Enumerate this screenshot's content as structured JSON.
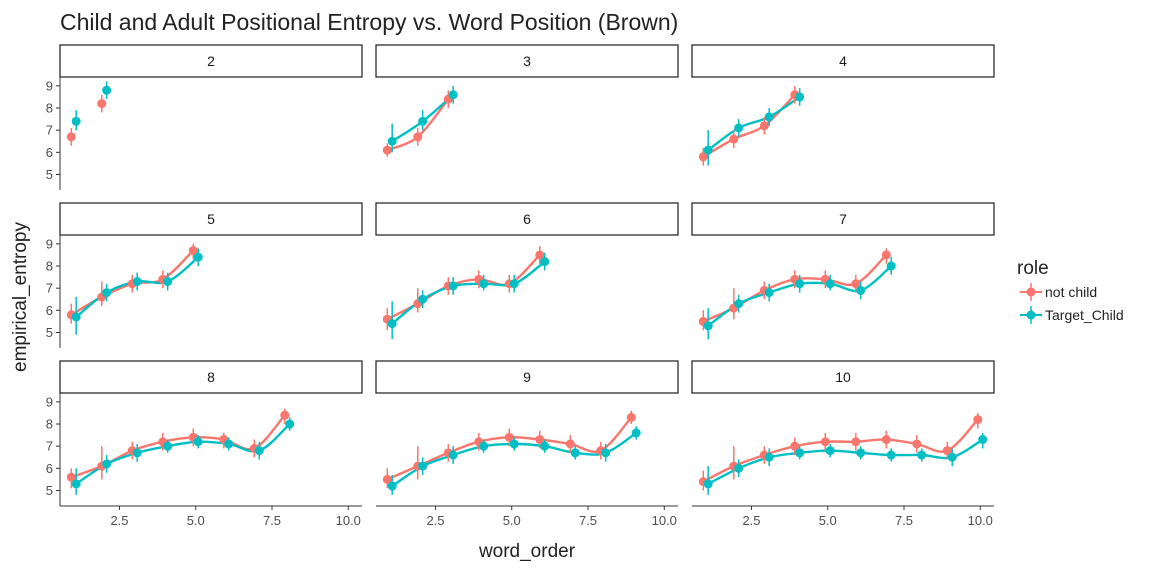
{
  "chart_data": {
    "type": "scatter",
    "title": "Child and Adult Positional Entropy vs. Word Position (Brown)",
    "xlabel": "word_order",
    "ylabel": "empirical_entropy",
    "xlim": [
      0.55,
      10.45
    ],
    "ylim": [
      4.3,
      9.4
    ],
    "x_ticks": [
      "2.5",
      "5.0",
      "7.5",
      "10.0"
    ],
    "y_ticks": [
      "5",
      "6",
      "7",
      "8",
      "9"
    ],
    "x_tick_values": [
      2.5,
      5.0,
      7.5,
      10.0
    ],
    "y_tick_values": [
      5,
      6,
      7,
      8,
      9
    ],
    "legend": {
      "title": "role",
      "placement": "right",
      "entries": [
        "not child",
        "Target_Child"
      ]
    },
    "grid": false,
    "smoothed_lines": true,
    "series_colors": {
      "not child": "#F8766D",
      "Target_Child": "#00BFC4"
    },
    "panels": [
      {
        "label": "2",
        "not_child": [
          [
            1,
            6.7,
            6.3,
            7.1
          ],
          [
            2,
            8.2,
            7.8,
            8.6
          ]
        ],
        "target_child": [
          [
            1,
            7.4,
            7.0,
            7.9
          ],
          [
            2,
            8.8,
            8.4,
            9.2
          ]
        ]
      },
      {
        "label": "3",
        "not_child": [
          [
            1,
            6.1,
            5.8,
            6.4
          ],
          [
            2,
            6.7,
            6.3,
            7.1
          ],
          [
            3,
            8.4,
            8.0,
            8.8
          ]
        ],
        "target_child": [
          [
            1,
            6.5,
            6.0,
            7.3
          ],
          [
            2,
            7.4,
            7.0,
            7.9
          ],
          [
            3,
            8.6,
            8.2,
            9.0
          ]
        ]
      },
      {
        "label": "4",
        "not_child": [
          [
            1,
            5.8,
            5.4,
            6.2
          ],
          [
            2,
            6.6,
            6.2,
            7.0
          ],
          [
            3,
            7.2,
            6.8,
            7.6
          ],
          [
            4,
            8.6,
            8.2,
            9.0
          ]
        ],
        "target_child": [
          [
            1,
            6.1,
            5.4,
            7.0
          ],
          [
            2,
            7.1,
            6.7,
            7.5
          ],
          [
            3,
            7.6,
            7.2,
            8.0
          ],
          [
            4,
            8.5,
            8.1,
            8.9
          ]
        ]
      },
      {
        "label": "5",
        "not_child": [
          [
            1,
            5.8,
            5.4,
            6.3
          ],
          [
            2,
            6.6,
            6.2,
            7.3
          ],
          [
            3,
            7.2,
            6.8,
            7.6
          ],
          [
            4,
            7.4,
            7.0,
            7.8
          ],
          [
            5,
            8.7,
            8.3,
            9.0
          ]
        ],
        "target_child": [
          [
            1,
            5.7,
            4.9,
            6.6
          ],
          [
            2,
            6.8,
            6.4,
            7.2
          ],
          [
            3,
            7.3,
            6.9,
            7.7
          ],
          [
            4,
            7.3,
            6.9,
            7.7
          ],
          [
            5,
            8.4,
            8.0,
            8.8
          ]
        ]
      },
      {
        "label": "6",
        "not_child": [
          [
            1,
            5.6,
            5.1,
            6.1
          ],
          [
            2,
            6.3,
            5.9,
            7.0
          ],
          [
            3,
            7.1,
            6.7,
            7.5
          ],
          [
            4,
            7.4,
            7.0,
            7.8
          ],
          [
            5,
            7.2,
            6.8,
            7.6
          ],
          [
            6,
            8.5,
            8.1,
            8.9
          ]
        ],
        "target_child": [
          [
            1,
            5.4,
            4.7,
            6.4
          ],
          [
            2,
            6.5,
            6.1,
            6.9
          ],
          [
            3,
            7.1,
            6.7,
            7.5
          ],
          [
            4,
            7.2,
            6.9,
            7.6
          ],
          [
            5,
            7.2,
            6.8,
            7.6
          ],
          [
            6,
            8.2,
            7.8,
            8.6
          ]
        ]
      },
      {
        "label": "7",
        "not_child": [
          [
            1,
            5.5,
            5.1,
            6.0
          ],
          [
            2,
            6.1,
            5.6,
            7.0
          ],
          [
            3,
            6.9,
            6.5,
            7.3
          ],
          [
            4,
            7.4,
            7.0,
            7.8
          ],
          [
            5,
            7.4,
            7.0,
            7.8
          ],
          [
            6,
            7.2,
            6.8,
            7.6
          ],
          [
            7,
            8.5,
            8.1,
            8.8
          ]
        ],
        "target_child": [
          [
            1,
            5.3,
            4.7,
            6.1
          ],
          [
            2,
            6.3,
            5.9,
            6.7
          ],
          [
            3,
            6.8,
            6.4,
            7.2
          ],
          [
            4,
            7.2,
            6.8,
            7.6
          ],
          [
            5,
            7.2,
            6.9,
            7.6
          ],
          [
            6,
            6.9,
            6.5,
            7.3
          ],
          [
            7,
            8.0,
            7.6,
            8.4
          ]
        ]
      },
      {
        "label": "8",
        "not_child": [
          [
            1,
            5.6,
            5.1,
            6.0
          ],
          [
            2,
            6.1,
            5.5,
            7.0
          ],
          [
            3,
            6.8,
            6.4,
            7.2
          ],
          [
            4,
            7.2,
            6.8,
            7.6
          ],
          [
            5,
            7.4,
            7.0,
            7.8
          ],
          [
            6,
            7.3,
            6.9,
            7.6
          ],
          [
            7,
            6.9,
            6.5,
            7.3
          ],
          [
            8,
            8.4,
            8.0,
            8.7
          ]
        ],
        "target_child": [
          [
            1,
            5.3,
            4.8,
            6.0
          ],
          [
            2,
            6.2,
            5.8,
            6.6
          ],
          [
            3,
            6.7,
            6.3,
            7.1
          ],
          [
            4,
            7.0,
            6.7,
            7.3
          ],
          [
            5,
            7.2,
            6.9,
            7.5
          ],
          [
            6,
            7.1,
            6.8,
            7.4
          ],
          [
            7,
            6.8,
            6.4,
            7.2
          ],
          [
            8,
            8.0,
            7.7,
            8.3
          ]
        ]
      },
      {
        "label": "9",
        "not_child": [
          [
            1,
            5.5,
            5.1,
            6.0
          ],
          [
            2,
            6.1,
            5.5,
            7.0
          ],
          [
            3,
            6.7,
            6.3,
            7.1
          ],
          [
            4,
            7.2,
            6.8,
            7.6
          ],
          [
            5,
            7.4,
            7.0,
            7.8
          ],
          [
            6,
            7.3,
            6.9,
            7.7
          ],
          [
            7,
            7.1,
            6.7,
            7.5
          ],
          [
            8,
            6.8,
            6.4,
            7.2
          ],
          [
            9,
            8.3,
            8.0,
            8.6
          ]
        ],
        "target_child": [
          [
            1,
            5.2,
            4.8,
            5.7
          ],
          [
            2,
            6.1,
            5.7,
            6.5
          ],
          [
            3,
            6.6,
            6.2,
            7.0
          ],
          [
            4,
            7.0,
            6.7,
            7.3
          ],
          [
            5,
            7.1,
            6.8,
            7.4
          ],
          [
            6,
            7.0,
            6.7,
            7.3
          ],
          [
            7,
            6.7,
            6.4,
            7.0
          ],
          [
            8,
            6.7,
            6.3,
            7.1
          ],
          [
            9,
            7.6,
            7.3,
            7.9
          ]
        ]
      },
      {
        "label": "10",
        "not_child": [
          [
            1,
            5.4,
            5.0,
            5.9
          ],
          [
            2,
            6.1,
            5.5,
            7.0
          ],
          [
            3,
            6.6,
            6.2,
            7.0
          ],
          [
            4,
            7.0,
            6.6,
            7.4
          ],
          [
            5,
            7.2,
            6.8,
            7.6
          ],
          [
            6,
            7.2,
            6.8,
            7.6
          ],
          [
            7,
            7.3,
            6.9,
            7.7
          ],
          [
            8,
            7.1,
            6.7,
            7.5
          ],
          [
            9,
            6.8,
            6.4,
            7.2
          ],
          [
            10,
            8.2,
            7.8,
            8.5
          ]
        ],
        "target_child": [
          [
            1,
            5.3,
            4.8,
            6.1
          ],
          [
            2,
            6.0,
            5.6,
            6.4
          ],
          [
            3,
            6.5,
            6.1,
            6.9
          ],
          [
            4,
            6.7,
            6.4,
            7.0
          ],
          [
            5,
            6.8,
            6.5,
            7.1
          ],
          [
            6,
            6.7,
            6.4,
            7.0
          ],
          [
            7,
            6.6,
            6.3,
            6.9
          ],
          [
            8,
            6.6,
            6.3,
            6.9
          ],
          [
            9,
            6.5,
            6.1,
            6.9
          ],
          [
            10,
            7.3,
            6.9,
            7.6
          ]
        ]
      }
    ]
  }
}
